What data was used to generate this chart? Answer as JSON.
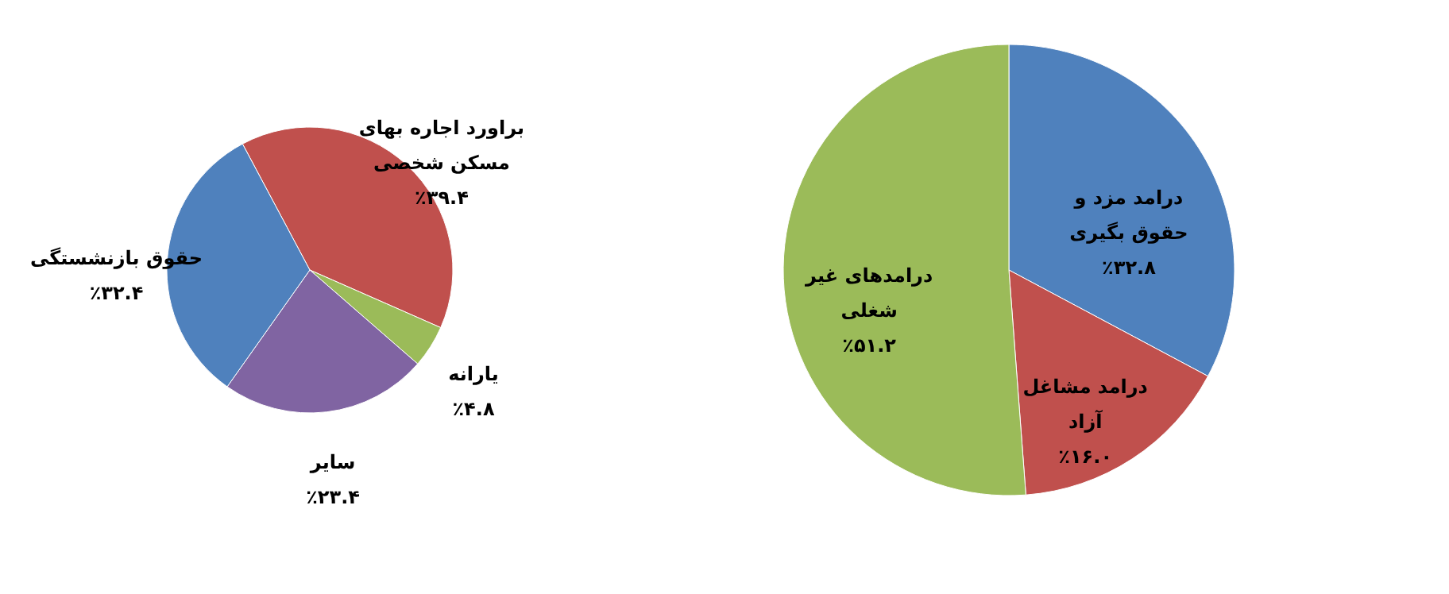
{
  "chart_data": [
    {
      "type": "pie",
      "categories": [
        "براورد اجاره بهای مسکن شخصی",
        "یارانه",
        "سایر",
        "حقوق بازنشستگی"
      ],
      "values": [
        39.4,
        4.8,
        23.4,
        32.4
      ],
      "colors": [
        "#c0504d",
        "#9bbb59",
        "#8064a2",
        "#4f81bd"
      ],
      "value_labels": [
        "٪۳۹.۴",
        "٪۴.۸",
        "٪۲۳.۴",
        "٪۳۲.۴"
      ]
    },
    {
      "type": "pie",
      "categories": [
        "درامد مزد و حقوق بگیری",
        "درامد مشاغل آزاد",
        "درامدهای غیر شغلی"
      ],
      "values": [
        32.8,
        16.0,
        51.2
      ],
      "colors": [
        "#4f81bd",
        "#c0504d",
        "#9bbb59"
      ],
      "value_labels": [
        "٪۳۲.۸",
        "٪۱۶.۰",
        "٪۵۱.۲"
      ]
    }
  ]
}
